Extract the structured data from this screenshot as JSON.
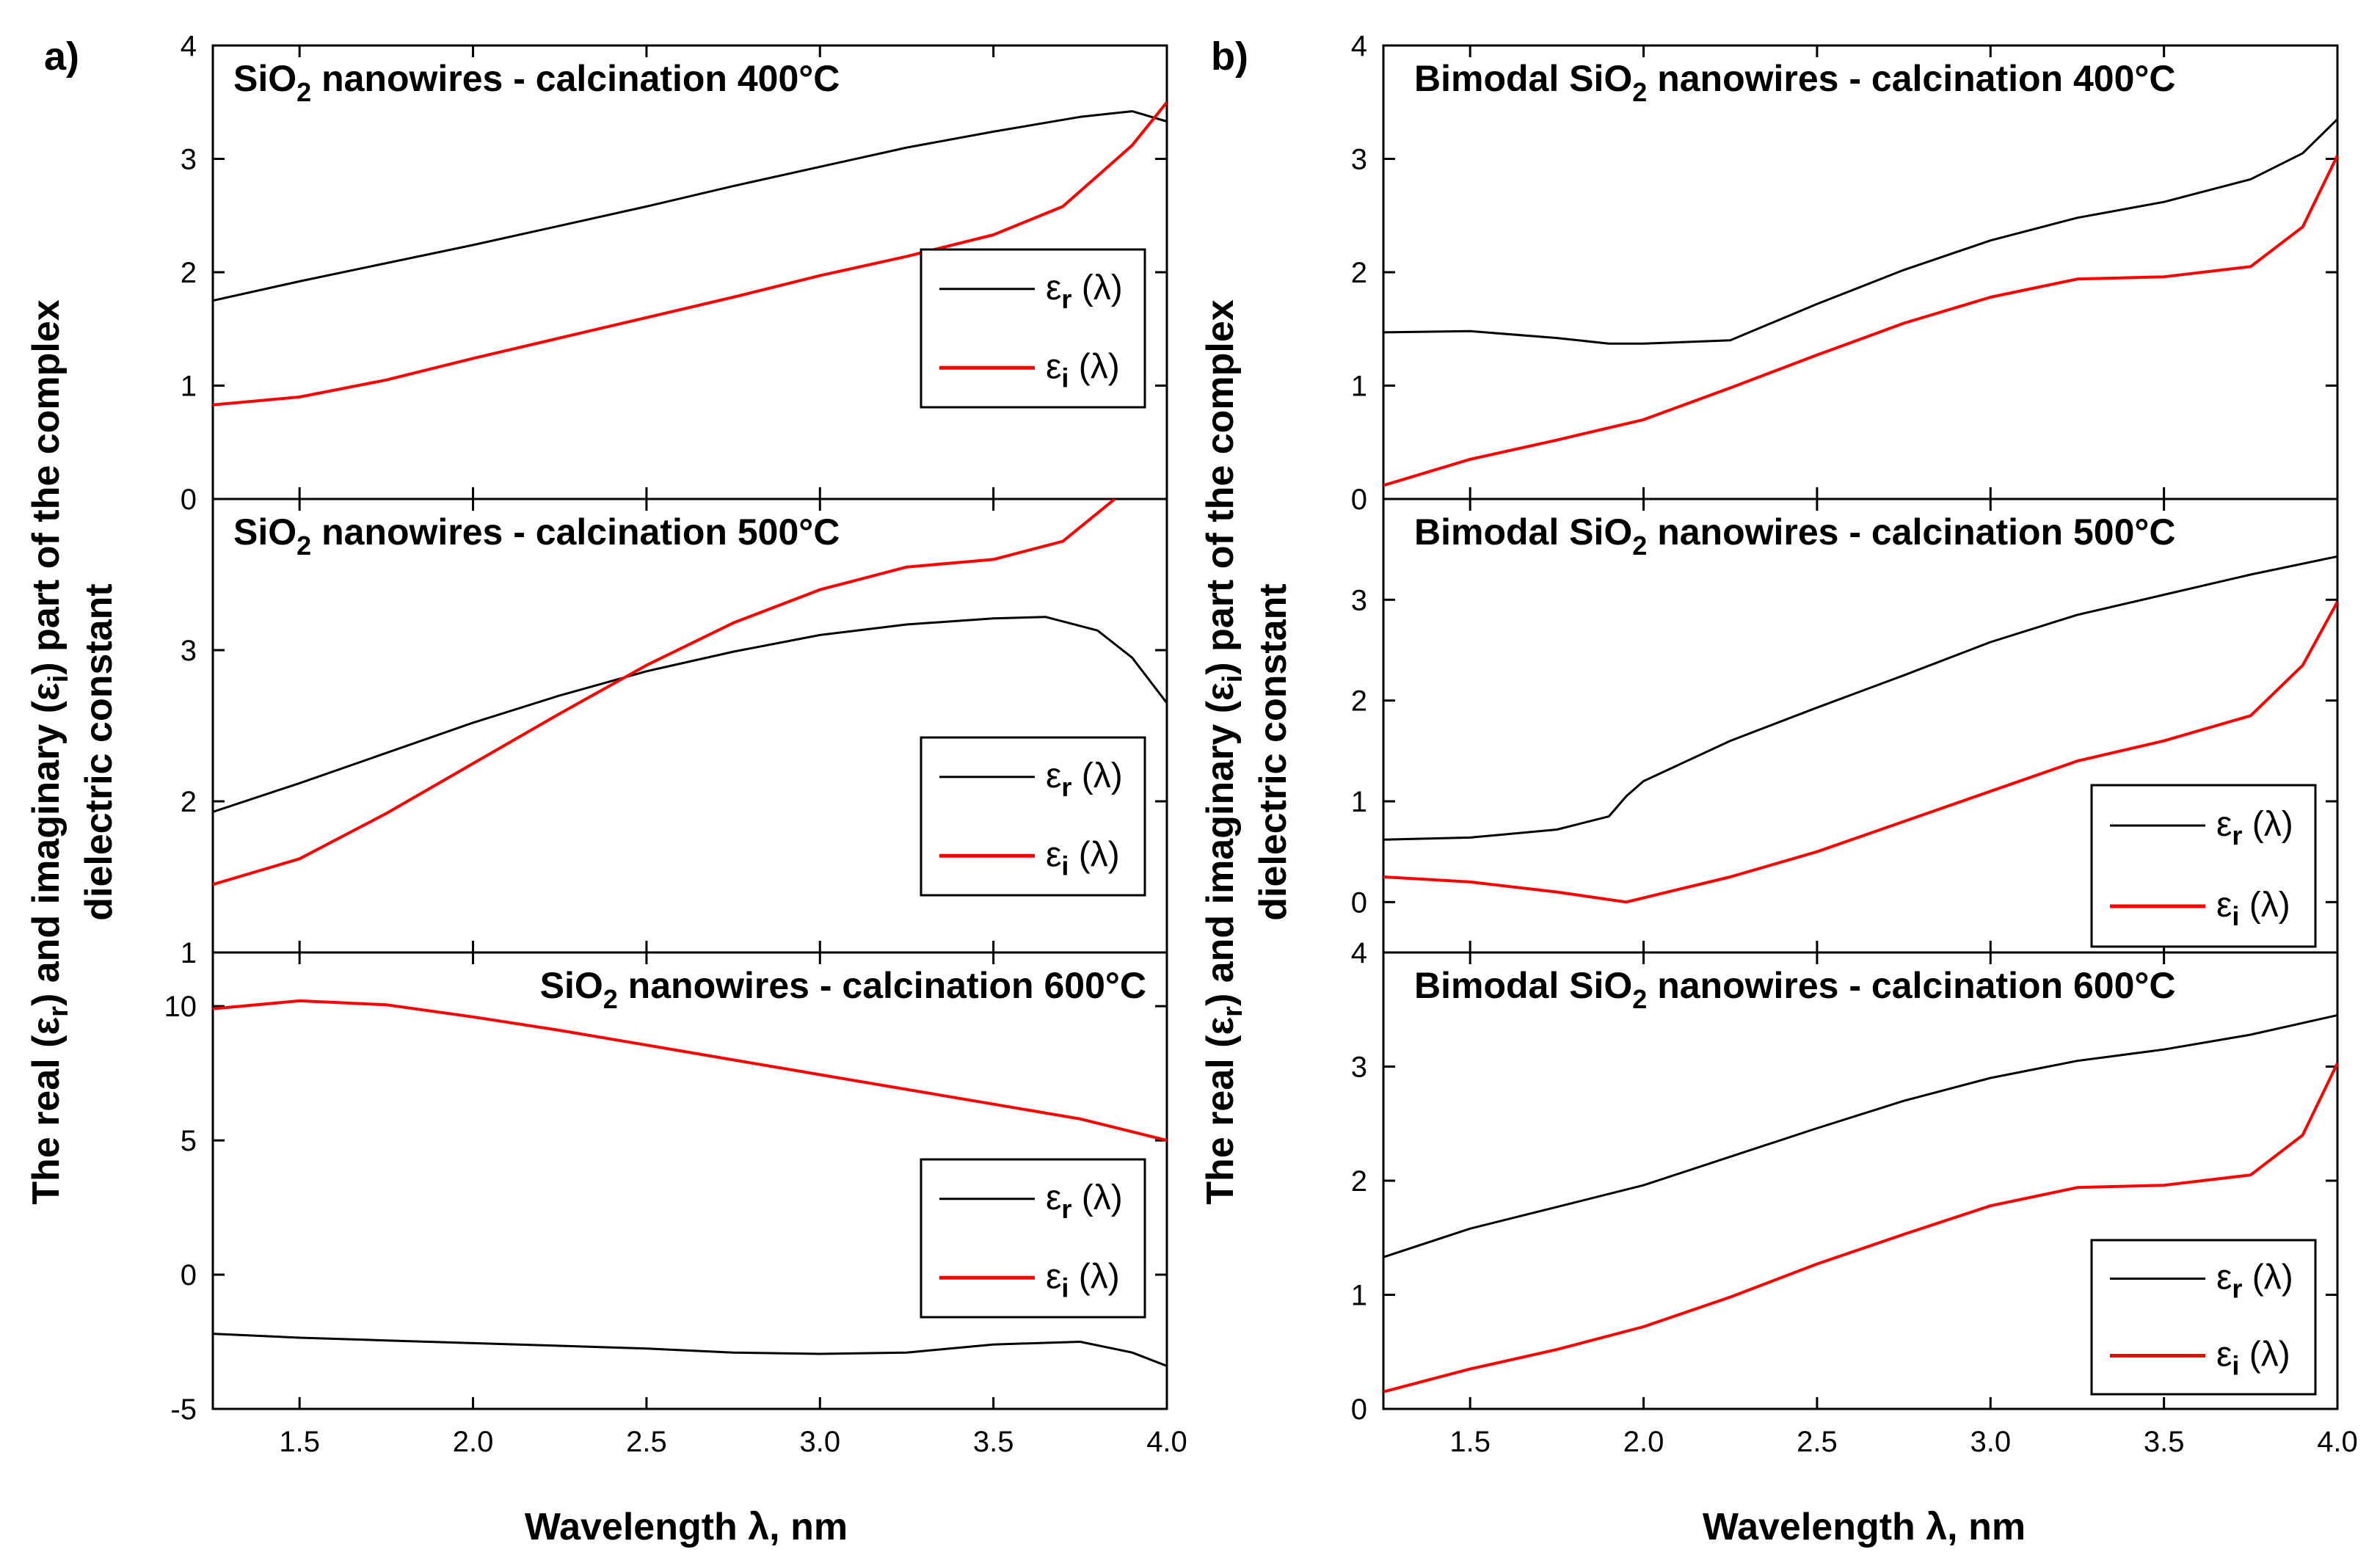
{
  "figure": {
    "panel_letters": [
      "a)",
      "b)"
    ],
    "ylabel_line1": "The real (ε",
    "ylabel_sub_r": "r",
    "ylabel_mid": ") and imaginary (ε",
    "ylabel_sub_i": "i",
    "ylabel_end": ") part of the complex",
    "ylabel_line2": "dielectric constant",
    "xlabel": "Wavelength λ, nm",
    "colors": {
      "er": "#000000",
      "ei": "#ff0000"
    },
    "legend": {
      "er_base": "ε",
      "er_sub": "r",
      "ei_base": "ε",
      "ei_sub": "i",
      "arg": " (λ)"
    }
  },
  "chart_data": [
    {
      "type": "line",
      "panel": "a",
      "row": 0,
      "title_pre": "SiO",
      "title_sub": "2",
      "title_post": " nanowires - calcination 400°C",
      "xlim": [
        1.25,
        4.0
      ],
      "ylim": [
        0,
        4
      ],
      "xticks": [
        1.5,
        2.0,
        2.5,
        3.0,
        3.5,
        4.0
      ],
      "yticks": [
        0,
        1,
        2,
        3,
        4
      ],
      "series": [
        {
          "name": "εr (λ)",
          "color": "#000000",
          "x": [
            1.25,
            1.5,
            1.75,
            2.0,
            2.25,
            2.5,
            2.75,
            3.0,
            3.25,
            3.5,
            3.75,
            3.9,
            4.0
          ],
          "y": [
            1.75,
            1.92,
            2.08,
            2.24,
            2.41,
            2.58,
            2.76,
            2.93,
            3.1,
            3.24,
            3.37,
            3.42,
            3.33
          ]
        },
        {
          "name": "εi (λ)",
          "color": "#ff0000",
          "x": [
            1.25,
            1.5,
            1.75,
            2.0,
            2.25,
            2.5,
            2.75,
            3.0,
            3.25,
            3.5,
            3.7,
            3.8,
            3.9,
            4.0
          ],
          "y": [
            0.83,
            0.9,
            1.05,
            1.24,
            1.42,
            1.6,
            1.78,
            1.97,
            2.14,
            2.33,
            2.58,
            2.85,
            3.12,
            3.5
          ]
        }
      ]
    },
    {
      "type": "line",
      "panel": "a",
      "row": 1,
      "title_pre": "SiO",
      "title_sub": "2",
      "title_post": " nanowires - calcination 500°C",
      "xlim": [
        1.25,
        4.0
      ],
      "ylim": [
        1,
        4
      ],
      "xticks": [
        1.5,
        2.0,
        2.5,
        3.0,
        3.5,
        4.0
      ],
      "yticks": [
        1,
        2,
        3
      ],
      "series": [
        {
          "name": "εr (λ)",
          "color": "#000000",
          "x": [
            1.25,
            1.5,
            1.75,
            2.0,
            2.25,
            2.5,
            2.75,
            3.0,
            3.25,
            3.5,
            3.65,
            3.8,
            3.9,
            4.0
          ],
          "y": [
            1.93,
            2.12,
            2.32,
            2.52,
            2.7,
            2.86,
            2.99,
            3.1,
            3.17,
            3.21,
            3.22,
            3.13,
            2.95,
            2.65
          ]
        },
        {
          "name": "εi (λ)",
          "color": "#ff0000",
          "x": [
            1.25,
            1.5,
            1.75,
            2.0,
            2.25,
            2.5,
            2.75,
            3.0,
            3.25,
            3.5,
            3.7,
            3.85
          ],
          "y": [
            1.45,
            1.62,
            1.92,
            2.25,
            2.58,
            2.9,
            3.18,
            3.4,
            3.55,
            3.6,
            3.72,
            4.0
          ]
        }
      ]
    },
    {
      "type": "line",
      "panel": "a",
      "row": 2,
      "title_pre": "SiO",
      "title_sub": "2",
      "title_post": " nanowires - calcination 600°C",
      "xlim": [
        1.25,
        4.0
      ],
      "ylim": [
        -5,
        12
      ],
      "xticks": [
        1.5,
        2.0,
        2.5,
        3.0,
        3.5,
        4.0
      ],
      "xticklabels": [
        "1.5",
        "2.0",
        "2.5",
        "3.0",
        "3.5",
        "4.0"
      ],
      "yticks": [
        -5,
        0,
        5,
        10
      ],
      "series": [
        {
          "name": "εr (λ)",
          "color": "#000000",
          "x": [
            1.25,
            1.5,
            1.75,
            2.0,
            2.25,
            2.5,
            2.75,
            3.0,
            3.25,
            3.5,
            3.75,
            3.9,
            4.0
          ],
          "y": [
            -2.2,
            -2.35,
            -2.45,
            -2.55,
            -2.65,
            -2.75,
            -2.9,
            -2.95,
            -2.9,
            -2.6,
            -2.5,
            -2.9,
            -3.4
          ]
        },
        {
          "name": "εi (λ)",
          "color": "#ff0000",
          "x": [
            1.25,
            1.5,
            1.75,
            2.0,
            2.25,
            2.5,
            2.75,
            3.0,
            3.25,
            3.5,
            3.75,
            4.0
          ],
          "y": [
            9.9,
            10.2,
            10.05,
            9.6,
            9.1,
            8.55,
            8.0,
            7.45,
            6.9,
            6.35,
            5.8,
            5.0
          ]
        }
      ]
    },
    {
      "type": "line",
      "panel": "b",
      "row": 0,
      "title_pre": "Bimodal SiO",
      "title_sub": "2",
      "title_post": " nanowires - calcination 400°C",
      "xlim": [
        1.25,
        4.0
      ],
      "ylim": [
        0,
        4
      ],
      "xticks": [
        1.5,
        2.0,
        2.5,
        3.0,
        3.5,
        4.0
      ],
      "yticks": [
        0,
        1,
        2,
        3,
        4
      ],
      "series": [
        {
          "name": "εr (λ)",
          "color": "#000000",
          "x": [
            1.25,
            1.5,
            1.75,
            1.9,
            2.0,
            2.25,
            2.5,
            2.75,
            3.0,
            3.25,
            3.5,
            3.75,
            3.9,
            4.0
          ],
          "y": [
            1.47,
            1.48,
            1.42,
            1.37,
            1.37,
            1.4,
            1.72,
            2.02,
            2.28,
            2.48,
            2.62,
            2.82,
            3.05,
            3.35
          ]
        },
        {
          "name": "εi (λ)",
          "color": "#ff0000",
          "x": [
            1.25,
            1.5,
            1.75,
            2.0,
            2.25,
            2.5,
            2.75,
            3.0,
            3.25,
            3.5,
            3.75,
            3.9,
            4.0
          ],
          "y": [
            0.12,
            0.35,
            0.52,
            0.7,
            0.98,
            1.27,
            1.55,
            1.78,
            1.94,
            1.96,
            2.05,
            2.4,
            3.03
          ]
        }
      ]
    },
    {
      "type": "line",
      "panel": "b",
      "row": 1,
      "title_pre": "Bimodal SiO",
      "title_sub": "2",
      "title_post": " nanowires - calcination 500°C",
      "xlim": [
        1.25,
        4.0
      ],
      "ylim": [
        -0.5,
        4
      ],
      "xticks": [
        1.5,
        2.0,
        2.5,
        3.0,
        3.5,
        4.0
      ],
      "yticks": [
        0,
        1,
        2,
        3
      ],
      "series": [
        {
          "name": "εr (λ)",
          "color": "#000000",
          "x": [
            1.25,
            1.5,
            1.75,
            1.9,
            1.95,
            2.0,
            2.25,
            2.5,
            2.75,
            3.0,
            3.25,
            3.5,
            3.75,
            4.0
          ],
          "y": [
            0.62,
            0.64,
            0.72,
            0.85,
            1.05,
            1.2,
            1.6,
            1.93,
            2.25,
            2.58,
            2.85,
            3.05,
            3.25,
            3.43
          ]
        },
        {
          "name": "εi (λ)",
          "color": "#ff0000",
          "x": [
            1.25,
            1.5,
            1.75,
            1.95,
            2.25,
            2.5,
            2.75,
            3.0,
            3.25,
            3.5,
            3.75,
            3.9,
            4.0
          ],
          "y": [
            0.25,
            0.2,
            0.1,
            0.0,
            0.25,
            0.5,
            0.8,
            1.1,
            1.4,
            1.6,
            1.85,
            2.35,
            2.98
          ]
        }
      ]
    },
    {
      "type": "line",
      "panel": "b",
      "row": 2,
      "title_pre": "Bimodal SiO",
      "title_sub": "2",
      "title_post": " nanowires - calcination 600°C",
      "xlim": [
        1.25,
        4.0
      ],
      "ylim": [
        0,
        4
      ],
      "xticks": [
        1.5,
        2.0,
        2.5,
        3.0,
        3.5,
        4.0
      ],
      "xticklabels": [
        "1.5",
        "2.0",
        "2.5",
        "3.0",
        "3.5",
        "4.0"
      ],
      "yticks": [
        0,
        1,
        2,
        3,
        4
      ],
      "series": [
        {
          "name": "εr (λ)",
          "color": "#000000",
          "x": [
            1.25,
            1.5,
            1.75,
            2.0,
            2.25,
            2.5,
            2.75,
            3.0,
            3.25,
            3.5,
            3.75,
            4.0
          ],
          "y": [
            1.33,
            1.58,
            1.77,
            1.96,
            2.21,
            2.46,
            2.7,
            2.9,
            3.05,
            3.15,
            3.28,
            3.45
          ]
        },
        {
          "name": "εi (λ)",
          "color": "#ff0000",
          "x": [
            1.25,
            1.5,
            1.75,
            2.0,
            2.25,
            2.5,
            2.75,
            3.0,
            3.25,
            3.5,
            3.75,
            3.9,
            4.0
          ],
          "y": [
            0.15,
            0.35,
            0.52,
            0.72,
            0.98,
            1.27,
            1.53,
            1.78,
            1.94,
            1.96,
            2.05,
            2.4,
            3.03
          ]
        }
      ]
    }
  ]
}
